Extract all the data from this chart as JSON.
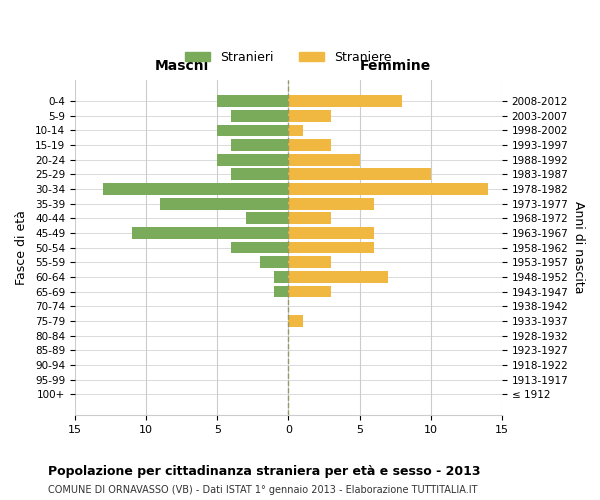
{
  "age_groups": [
    "100+",
    "95-99",
    "90-94",
    "85-89",
    "80-84",
    "75-79",
    "70-74",
    "65-69",
    "60-64",
    "55-59",
    "50-54",
    "45-49",
    "40-44",
    "35-39",
    "30-34",
    "25-29",
    "20-24",
    "15-19",
    "10-14",
    "5-9",
    "0-4"
  ],
  "birth_years": [
    "≤ 1912",
    "1913-1917",
    "1918-1922",
    "1923-1927",
    "1928-1932",
    "1933-1937",
    "1938-1942",
    "1943-1947",
    "1948-1952",
    "1953-1957",
    "1958-1962",
    "1963-1967",
    "1968-1972",
    "1973-1977",
    "1978-1982",
    "1983-1987",
    "1988-1992",
    "1993-1997",
    "1998-2002",
    "2003-2007",
    "2008-2012"
  ],
  "maschi": [
    0,
    0,
    0,
    0,
    0,
    0,
    0,
    1,
    1,
    2,
    4,
    11,
    3,
    9,
    13,
    4,
    5,
    4,
    5,
    4,
    5
  ],
  "femmine": [
    0,
    0,
    0,
    0,
    0,
    1,
    0,
    3,
    7,
    3,
    6,
    6,
    3,
    6,
    14,
    10,
    5,
    3,
    1,
    3,
    8
  ],
  "male_color": "#7aab5a",
  "female_color": "#f0b840",
  "center_line_color": "#999966",
  "grid_color": "#cccccc",
  "background_color": "#ffffff",
  "title": "Popolazione per cittadinanza straniera per età e sesso - 2013",
  "subtitle": "COMUNE DI ORNAVASSO (VB) - Dati ISTAT 1° gennaio 2013 - Elaborazione TUTTITALIA.IT",
  "xlabel_left": "Maschi",
  "xlabel_right": "Femmine",
  "ylabel_left": "Fasce di età",
  "ylabel_right": "Anni di nascita",
  "legend_male": "Stranieri",
  "legend_female": "Straniere",
  "xlim": 15,
  "bar_height": 0.8
}
